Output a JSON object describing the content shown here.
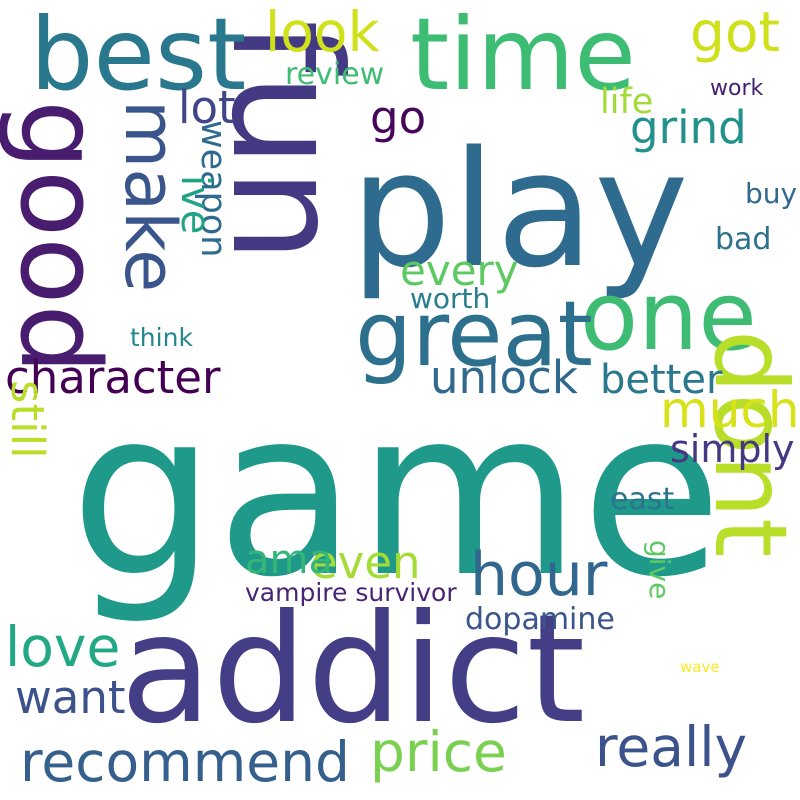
{
  "word_cloud": {
    "words": [
      {
        "text": "game",
        "color": "#1f9a8a"
      },
      {
        "text": "play",
        "color": "#2f6b8e"
      },
      {
        "text": "addict",
        "color": "#433e85"
      },
      {
        "text": "fun",
        "color": "#443a83"
      },
      {
        "text": "time",
        "color": "#3dbc74"
      },
      {
        "text": "best",
        "color": "#2a788e"
      },
      {
        "text": "good",
        "color": "#481c6e"
      },
      {
        "text": "one",
        "color": "#3fbc73"
      },
      {
        "text": "dont",
        "color": "#b8de29"
      },
      {
        "text": "great",
        "color": "#2d708e"
      },
      {
        "text": "hour",
        "color": "#31668e"
      },
      {
        "text": "make",
        "color": "#3a548c"
      },
      {
        "text": "price",
        "color": "#7ad151"
      },
      {
        "text": "recommend",
        "color": "#355f8d"
      },
      {
        "text": "character",
        "color": "#440154"
      },
      {
        "text": "unlock",
        "color": "#31688e"
      },
      {
        "text": "really",
        "color": "#3b528b"
      },
      {
        "text": "much",
        "color": "#d8e219"
      },
      {
        "text": "love",
        "color": "#22a884"
      },
      {
        "text": "look",
        "color": "#d0e11c"
      },
      {
        "text": "every",
        "color": "#5ec962"
      },
      {
        "text": "want",
        "color": "#3b528b"
      },
      {
        "text": "grind",
        "color": "#21918c"
      },
      {
        "text": "lot",
        "color": "#404688"
      },
      {
        "text": "go",
        "color": "#46075a"
      },
      {
        "text": "got",
        "color": "#d0e11c"
      },
      {
        "text": "even",
        "color": "#a5db36"
      },
      {
        "text": "still",
        "color": "#b8de29"
      },
      {
        "text": "better",
        "color": "#2a788e"
      },
      {
        "text": "weapon",
        "color": "#2f6b8e"
      },
      {
        "text": "ive",
        "color": "#20a386"
      },
      {
        "text": "ama",
        "color": "#34b679"
      },
      {
        "text": "simply",
        "color": "#453781"
      },
      {
        "text": "dopamine",
        "color": "#39558c"
      },
      {
        "text": "life",
        "color": "#a2da37"
      },
      {
        "text": "review",
        "color": "#3fbc73"
      },
      {
        "text": "vampire survivor",
        "color": "#482475"
      },
      {
        "text": "bad",
        "color": "#2c728e"
      },
      {
        "text": "east",
        "color": "#2c738e"
      },
      {
        "text": "worth",
        "color": "#287d8e"
      },
      {
        "text": "think",
        "color": "#23888e"
      },
      {
        "text": "buy",
        "color": "#31688e"
      },
      {
        "text": "give",
        "color": "#5ec962"
      },
      {
        "text": "work",
        "color": "#481f70"
      },
      {
        "text": "wave",
        "color": "#fde725"
      }
    ]
  }
}
